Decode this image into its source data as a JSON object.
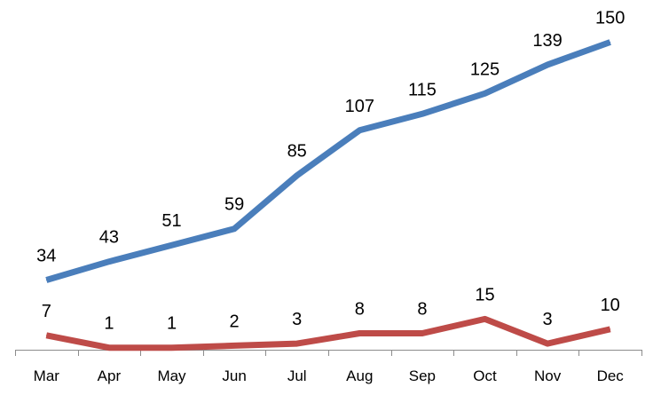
{
  "chart_data": {
    "type": "line",
    "title": "",
    "xlabel": "",
    "ylabel": "",
    "categories": [
      "Mar",
      "Apr",
      "May",
      "Jun",
      "Jul",
      "Aug",
      "Sep",
      "Oct",
      "Nov",
      "Dec"
    ],
    "ylim": [
      0,
      155
    ],
    "grid": false,
    "legend": "none",
    "data_labels": true,
    "series": [
      {
        "values": [
          34,
          43,
          51,
          59,
          85,
          107,
          115,
          125,
          139,
          150
        ],
        "color": "#4a7ebb"
      },
      {
        "values": [
          7,
          1,
          1,
          2,
          3,
          8,
          8,
          15,
          3,
          10
        ],
        "color": "#be4b48"
      }
    ]
  }
}
